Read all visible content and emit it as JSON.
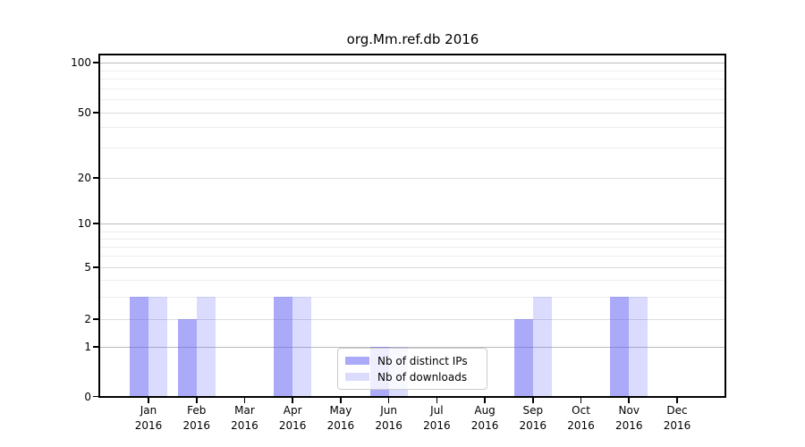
{
  "chart_data": {
    "type": "bar",
    "title": "org.Mm.ref.db 2016",
    "xlabel": "",
    "ylabel": "",
    "yscale": "symlog (log above 1, linear 0-1)",
    "ylim": [
      0,
      100
    ],
    "grid": true,
    "legend_position": "lower center, inside plot",
    "x_categories": [
      {
        "month": "Jan",
        "year": "2016"
      },
      {
        "month": "Feb",
        "year": "2016"
      },
      {
        "month": "Mar",
        "year": "2016"
      },
      {
        "month": "Apr",
        "year": "2016"
      },
      {
        "month": "May",
        "year": "2016"
      },
      {
        "month": "Jun",
        "year": "2016"
      },
      {
        "month": "Jul",
        "year": "2016"
      },
      {
        "month": "Aug",
        "year": "2016"
      },
      {
        "month": "Sep",
        "year": "2016"
      },
      {
        "month": "Oct",
        "year": "2016"
      },
      {
        "month": "Nov",
        "year": "2016"
      },
      {
        "month": "Dec",
        "year": "2016"
      }
    ],
    "y_ticks": [
      100,
      50,
      20,
      10,
      5,
      2,
      1,
      0
    ],
    "series": [
      {
        "name": "Nb of distinct IPs",
        "color": "rgba(92,92,244,0.52)",
        "values": [
          3,
          2,
          0,
          3,
          0,
          1,
          0,
          0,
          2,
          0,
          3,
          0
        ]
      },
      {
        "name": "Nb of downloads",
        "color": "rgba(92,92,244,0.22)",
        "values": [
          3,
          3,
          0,
          3,
          0,
          1,
          0,
          0,
          3,
          0,
          3,
          0
        ]
      }
    ]
  },
  "colors": {
    "background": "#ffffff",
    "spine": "#000000",
    "grid_decade": "#bcbcbc",
    "grid_labeled": "#dcdcdc",
    "grid_minor": "#ededed",
    "legend_border": "#cccccc",
    "text": "#000000"
  }
}
